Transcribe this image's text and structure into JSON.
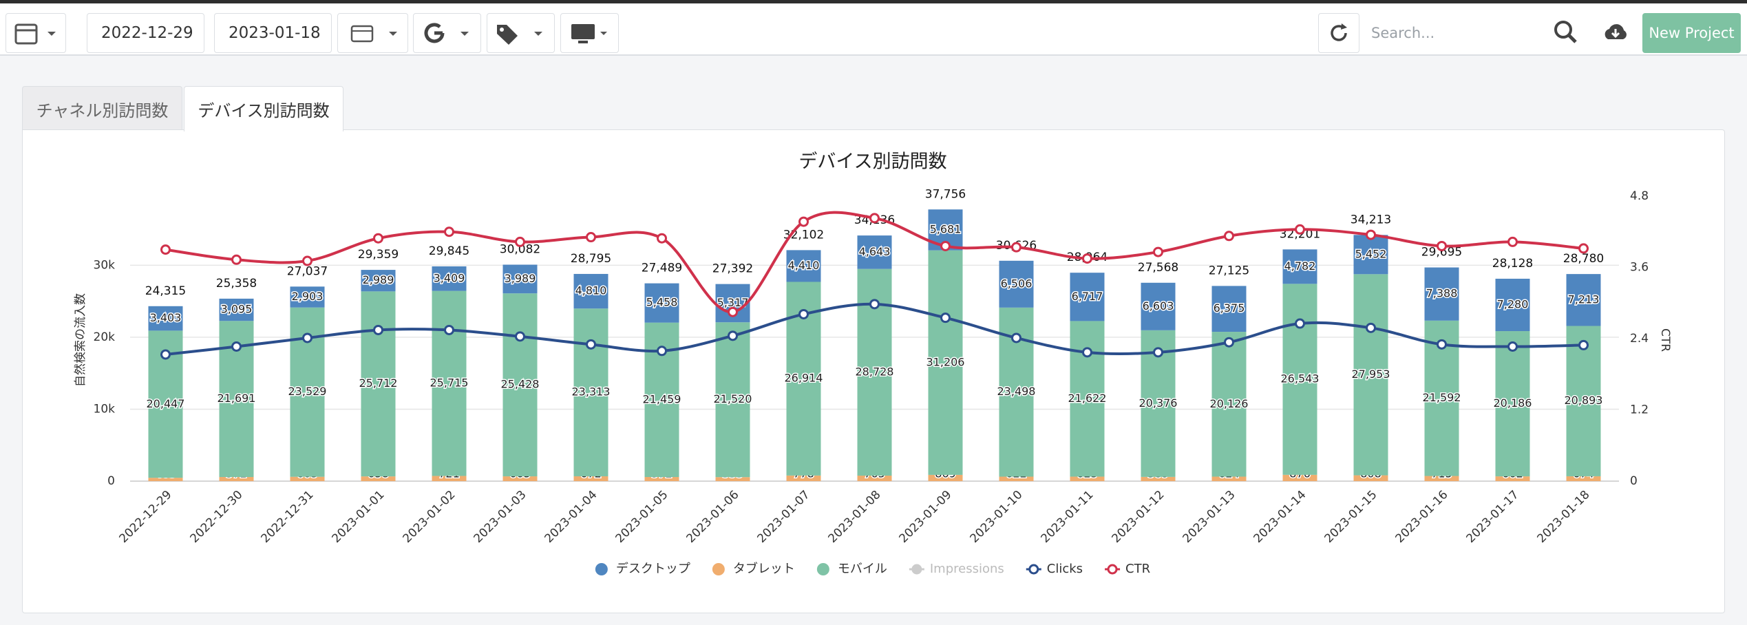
{
  "toolbar": {
    "start_date": "2022-12-29",
    "end_date": "2023-01-18",
    "search_placeholder": "Search...",
    "new_project": "New Project"
  },
  "tabs": [
    "チャネル別訪問数",
    "デバイス別訪問数"
  ],
  "chart_data": {
    "type": "stacked-bar-line",
    "title": "デバイス別訪問数",
    "y_label": "自然検索の流入数",
    "y2_label": "CTR",
    "categories": [
      "2022-12-29",
      "2022-12-30",
      "2022-12-31",
      "2023-01-01",
      "2023-01-02",
      "2023-01-03",
      "2023-01-04",
      "2023-01-05",
      "2023-01-06",
      "2023-01-07",
      "2023-01-08",
      "2023-01-09",
      "2023-01-10",
      "2023-01-11",
      "2023-01-12",
      "2023-01-13",
      "2023-01-14",
      "2023-01-15",
      "2023-01-16",
      "2023-01-17",
      "2023-01-18"
    ],
    "ylim": [
      0,
      39600
    ],
    "yticks": [
      0,
      {
        "value": 10000,
        "label": "10k"
      },
      {
        "value": 20000,
        "label": "20k"
      },
      {
        "value": 30000,
        "label": "30k"
      }
    ],
    "y2lim": [
      0,
      4.8
    ],
    "y2ticks": [
      0,
      1.2,
      2.4,
      3.6,
      4.8
    ],
    "grid": true,
    "legend": "bottom",
    "series": [
      {
        "name": "デスクトップ",
        "kind": "bar",
        "color": "#4f86c0",
        "values": [
          3403,
          3095,
          2903,
          2989,
          3409,
          3989,
          4810,
          5458,
          5317,
          4410,
          4643,
          5681,
          6506,
          6717,
          6603,
          6375,
          4782,
          5452,
          7388,
          7280,
          7213
        ],
        "value_labels": [
          "3,403",
          "3,095",
          "2,903",
          "2,989",
          "3,409",
          "3,989",
          "4,810",
          "5,458",
          "5,317",
          "4,410",
          "4,643",
          "5,681",
          "6,506",
          "6,717",
          "6,603",
          "6,375",
          "4,782",
          "5,452",
          "7,388",
          "7,280",
          "7,213"
        ]
      },
      {
        "name": "タブレット",
        "kind": "bar",
        "color": "#f0ad6e",
        "values": [
          465,
          572,
          605,
          658,
          721,
          665,
          672,
          572,
          555,
          778,
          765,
          869,
          622,
          625,
          589,
          624,
          876,
          808,
          715,
          662,
          674
        ]
      },
      {
        "name": "モバイル",
        "kind": "bar",
        "color": "#7fc3a6",
        "values": [
          20447,
          21691,
          23529,
          25712,
          25715,
          25428,
          23313,
          21459,
          21520,
          26914,
          28728,
          31206,
          23498,
          21622,
          20376,
          20126,
          26543,
          27953,
          21592,
          20186,
          20893
        ],
        "value_labels": [
          "20,447",
          "21,691",
          "23,529",
          "25,712",
          "25,715",
          "25,428",
          "23,313",
          "21,459",
          "21,520",
          "26,914",
          "28,728",
          "31,206",
          "23,498",
          "21,622",
          "20,376",
          "20,126",
          "26,543",
          "27,953",
          "21,592",
          "20,186",
          "20,893"
        ]
      },
      {
        "name": "Impressions",
        "kind": "line",
        "color": "#cccccc",
        "visible": false
      },
      {
        "name": "Clicks",
        "kind": "line",
        "color": "#2b4e8c",
        "values": [
          17600,
          18700,
          19900,
          21000,
          21000,
          20100,
          19000,
          18100,
          20200,
          23200,
          24600,
          22700,
          19900,
          17900,
          17900,
          19300,
          21900,
          21300,
          19000,
          18700,
          18900
        ]
      },
      {
        "name": "CTR",
        "kind": "line",
        "axis": "y2",
        "color": "#d0314b",
        "values": [
          3.9,
          3.73,
          3.71,
          4.09,
          4.2,
          4.03,
          4.11,
          4.09,
          2.85,
          4.37,
          4.43,
          3.96,
          3.94,
          3.75,
          3.86,
          4.13,
          4.24,
          4.15,
          3.96,
          4.03,
          3.92
        ]
      }
    ],
    "totals": {
      "values": [
        24315,
        25358,
        27037,
        29359,
        29845,
        30082,
        28795,
        27489,
        27392,
        32102,
        34136,
        37756,
        30626,
        28964,
        27568,
        27125,
        32201,
        34213,
        29695,
        28128,
        28780
      ],
      "value_labels": [
        "24,315",
        "25,358",
        "27,037",
        "29,359",
        "29,845",
        "30,082",
        "28,795",
        "27,489",
        "27,392",
        "32,102",
        "34,136",
        "37,756",
        "30,626",
        "28,964",
        "27,568",
        "27,125",
        "32,201",
        "34,213",
        "29,695",
        "28,128",
        "28,780"
      ]
    }
  }
}
